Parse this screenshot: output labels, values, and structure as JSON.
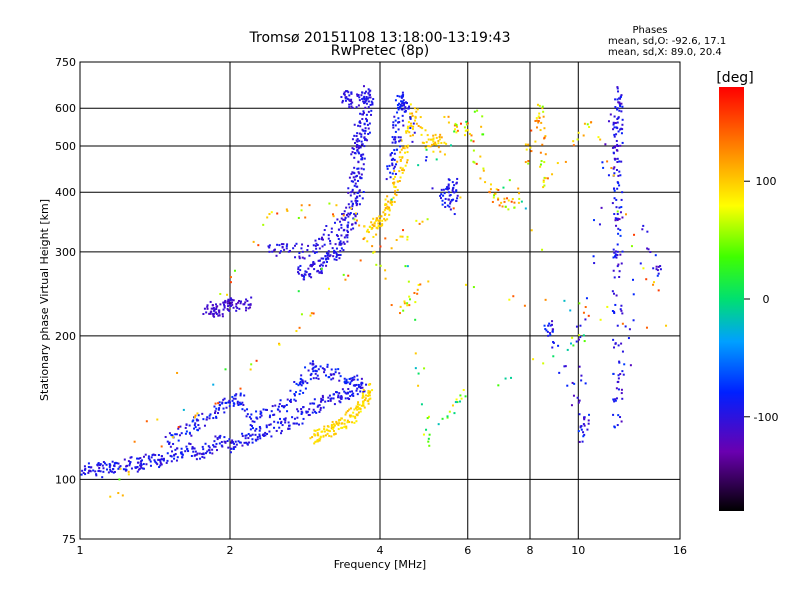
{
  "chart_data": {
    "type": "scatter",
    "title": "Tromsø 20151108 13:18:00-13:19:43",
    "subtitle": "RwPretec (8p)",
    "xlabel": "Frequency [MHz]",
    "ylabel": "Stationary phase Virtual Height [km]",
    "x_scale": "log",
    "y_scale": "log",
    "xlim": [
      1,
      16
    ],
    "ylim": [
      75,
      750
    ],
    "x_ticks": [
      1,
      2,
      4,
      6,
      8,
      10,
      16
    ],
    "x_tick_labels": [
      "1",
      "2",
      "4",
      "6",
      "8",
      "10",
      "16"
    ],
    "y_ticks": [
      75,
      100,
      200,
      300,
      400,
      500,
      600,
      750
    ],
    "y_tick_labels": [
      "75",
      "100",
      "200",
      "300",
      "400",
      "500",
      "600",
      "750"
    ],
    "grid": true,
    "phase_info": {
      "heading": "Phases",
      "line_o": "mean, sd,O: -92.6, 17.1",
      "line_x": "mean, sd,X:  89.0, 20.4"
    },
    "colorbar": {
      "unit": "[deg]",
      "range": [
        -180,
        180
      ],
      "ticks": [
        100,
        0,
        -100
      ],
      "tick_labels": [
        "100",
        "0",
        "-100"
      ]
    },
    "traces": [
      {
        "name": "",
        "phase_mean": -95,
        "phase_sd": 15,
        "points": [
          [
            1.0,
            105
          ],
          [
            1.05,
            106
          ],
          [
            1.1,
            104
          ],
          [
            1.15,
            107
          ],
          [
            1.2,
            106
          ],
          [
            1.26,
            108
          ],
          [
            1.32,
            107
          ],
          [
            1.38,
            110
          ],
          [
            1.45,
            109
          ],
          [
            1.52,
            112
          ],
          [
            1.6,
            114
          ],
          [
            1.68,
            116
          ],
          [
            1.76,
            113
          ],
          [
            1.85,
            118
          ],
          [
            1.95,
            120
          ],
          [
            2.05,
            117
          ],
          [
            2.15,
            122
          ],
          [
            2.25,
            124
          ],
          [
            2.4,
            126
          ],
          [
            2.55,
            130
          ],
          [
            2.7,
            134
          ],
          [
            2.85,
            138
          ],
          [
            3.0,
            142
          ],
          [
            3.15,
            146
          ],
          [
            3.3,
            150
          ],
          [
            3.45,
            152
          ],
          [
            3.6,
            155
          ],
          [
            3.75,
            158
          ]
        ]
      },
      {
        "name": "",
        "phase_mean": -90,
        "phase_sd": 18,
        "points": [
          [
            1.5,
            120
          ],
          [
            1.6,
            125
          ],
          [
            1.7,
            130
          ],
          [
            1.8,
            135
          ],
          [
            1.9,
            140
          ],
          [
            2.0,
            145
          ],
          [
            2.1,
            150
          ],
          [
            2.2,
            130
          ],
          [
            2.3,
            135
          ],
          [
            2.5,
            140
          ],
          [
            2.7,
            150
          ],
          [
            2.8,
            160
          ],
          [
            2.9,
            175
          ],
          [
            3.0,
            165
          ],
          [
            3.2,
            170
          ],
          [
            3.4,
            160
          ],
          [
            3.6,
            165
          ]
        ]
      },
      {
        "name": "",
        "phase_mean": 95,
        "phase_sd": 12,
        "points": [
          [
            2.9,
            122
          ],
          [
            3.0,
            125
          ],
          [
            3.1,
            126
          ],
          [
            3.2,
            128
          ],
          [
            3.3,
            130
          ],
          [
            3.4,
            133
          ],
          [
            3.5,
            136
          ],
          [
            3.6,
            140
          ],
          [
            3.7,
            143
          ],
          [
            3.75,
            150
          ],
          [
            3.8,
            158
          ]
        ]
      },
      {
        "name": "",
        "phase_mean": -98,
        "phase_sd": 14,
        "points": [
          [
            2.75,
            270
          ],
          [
            2.85,
            272
          ],
          [
            2.95,
            276
          ],
          [
            3.05,
            282
          ],
          [
            3.15,
            290
          ],
          [
            3.25,
            300
          ],
          [
            3.35,
            312
          ],
          [
            3.45,
            330
          ],
          [
            3.55,
            360
          ],
          [
            3.6,
            390
          ],
          [
            3.65,
            430
          ],
          [
            3.7,
            480
          ],
          [
            3.72,
            520
          ],
          [
            3.75,
            570
          ],
          [
            3.8,
            620
          ],
          [
            3.82,
            640
          ]
        ]
      },
      {
        "name": "",
        "phase_mean": -100,
        "phase_sd": 12,
        "points": [
          [
            2.4,
            300
          ],
          [
            2.6,
            305
          ],
          [
            2.8,
            300
          ],
          [
            3.0,
            310
          ],
          [
            3.2,
            330
          ],
          [
            3.4,
            350
          ],
          [
            3.5,
            400
          ],
          [
            3.55,
            450
          ],
          [
            3.6,
            500
          ],
          [
            3.65,
            550
          ],
          [
            3.4,
            640
          ],
          [
            3.5,
            625
          ],
          [
            3.7,
            620
          ],
          [
            3.75,
            650
          ]
        ]
      },
      {
        "name": "",
        "phase_mean": -110,
        "phase_sd": 10,
        "points": [
          [
            1.8,
            230
          ],
          [
            1.85,
            228
          ],
          [
            1.9,
            226
          ],
          [
            1.95,
            231
          ],
          [
            2.0,
            232
          ],
          [
            2.1,
            234
          ],
          [
            2.2,
            233
          ]
        ]
      },
      {
        "name": "",
        "phase_mean": 100,
        "phase_sd": 15,
        "points": [
          [
            3.8,
            330
          ],
          [
            3.9,
            340
          ],
          [
            4.0,
            350
          ],
          [
            4.1,
            360
          ],
          [
            4.2,
            380
          ],
          [
            4.3,
            410
          ],
          [
            4.4,
            450
          ],
          [
            4.5,
            500
          ],
          [
            4.6,
            550
          ],
          [
            4.7,
            600
          ],
          [
            5.0,
            500
          ],
          [
            5.2,
            520
          ],
          [
            5.4,
            480
          ]
        ]
      },
      {
        "name": "",
        "phase_mean": -90,
        "phase_sd": 16,
        "points": [
          [
            4.2,
            430
          ],
          [
            4.25,
            470
          ],
          [
            4.3,
            510
          ],
          [
            4.35,
            560
          ],
          [
            4.4,
            610
          ],
          [
            4.45,
            640
          ],
          [
            4.5,
            590
          ],
          [
            5.4,
            380
          ],
          [
            5.5,
            400
          ],
          [
            5.6,
            420
          ],
          [
            5.65,
            360
          ]
        ]
      },
      {
        "name": "",
        "phase_mean": -95,
        "phase_sd": 25,
        "points": [
          [
            8.7,
            210
          ],
          [
            8.7,
            200
          ],
          [
            10.3,
            135
          ],
          [
            10.2,
            120
          ],
          [
            10.1,
            210
          ],
          [
            12.0,
            660
          ],
          [
            12.0,
            600
          ],
          [
            12.0,
            560
          ],
          [
            12.0,
            500
          ],
          [
            12.0,
            470
          ],
          [
            12.0,
            420
          ],
          [
            12.0,
            360
          ],
          [
            12.0,
            300
          ],
          [
            12.0,
            280
          ],
          [
            12.0,
            210
          ],
          [
            12.0,
            160
          ],
          [
            12.0,
            130
          ],
          [
            13.5,
            340
          ],
          [
            14.5,
            270
          ]
        ]
      },
      {
        "name": "",
        "phase_mean": 100,
        "phase_sd": 60,
        "points": [
          [
            5.5,
            560
          ],
          [
            6.0,
            540
          ],
          [
            6.5,
            420
          ],
          [
            7.0,
            380
          ],
          [
            7.6,
            380
          ],
          [
            8.3,
            610
          ],
          [
            8.4,
            540
          ],
          [
            8.5,
            410
          ],
          [
            10.6,
            560
          ],
          [
            15.0,
            210
          ],
          [
            5.0,
            260
          ],
          [
            4.4,
            230
          ],
          [
            3.5,
            370
          ],
          [
            2.4,
            360
          ],
          [
            1.15,
            92
          ],
          [
            2.2,
            170
          ],
          [
            3.9,
            300
          ],
          [
            5.8,
            390
          ]
        ]
      },
      {
        "name": "",
        "phase_mean": 40,
        "phase_sd": 70,
        "points": [
          [
            4.5,
            280
          ],
          [
            5.0,
            120
          ],
          [
            5.8,
            150
          ],
          [
            10.3,
            195
          ],
          [
            6.2,
            590
          ],
          [
            1.2,
            100
          ]
        ]
      }
    ]
  }
}
